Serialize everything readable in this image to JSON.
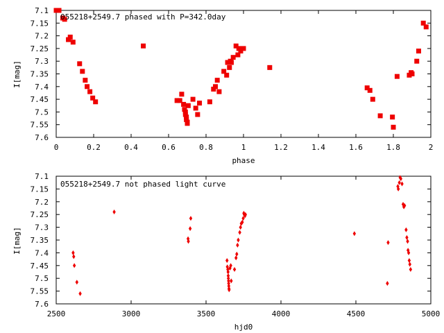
{
  "chart_data": [
    {
      "type": "scatter",
      "title": "055218+2549.7 phased with P=342.0day",
      "xlabel": "phase",
      "ylabel": "I[mag]",
      "xlim": [
        0,
        2
      ],
      "ylim": [
        7.1,
        7.6
      ],
      "y_inverted": true,
      "grid": false,
      "xticks": [
        "0",
        "0.2",
        "0.4",
        "0.6",
        "0.8",
        "1",
        "1.2",
        "1.4",
        "1.6",
        "1.8",
        "2"
      ],
      "yticks": [
        "7.1",
        "7.15",
        "7.2",
        "7.25",
        "7.3",
        "7.35",
        "7.4",
        "7.45",
        "7.5",
        "7.55",
        "7.6"
      ],
      "marker": "square",
      "color": "#ee0000",
      "points": [
        [
          0.0,
          7.1
        ],
        [
          0.01,
          7.1
        ],
        [
          0.015,
          7.1
        ],
        [
          0.035,
          7.13
        ],
        [
          0.045,
          7.135
        ],
        [
          0.065,
          7.215
        ],
        [
          0.075,
          7.205
        ],
        [
          0.09,
          7.225
        ],
        [
          0.125,
          7.31
        ],
        [
          0.14,
          7.34
        ],
        [
          0.155,
          7.375
        ],
        [
          0.165,
          7.4
        ],
        [
          0.18,
          7.42
        ],
        [
          0.195,
          7.445
        ],
        [
          0.21,
          7.46
        ],
        [
          0.465,
          7.24
        ],
        [
          0.645,
          7.455
        ],
        [
          0.66,
          7.455
        ],
        [
          0.67,
          7.43
        ],
        [
          0.68,
          7.47
        ],
        [
          0.685,
          7.49
        ],
        [
          0.69,
          7.5
        ],
        [
          0.69,
          7.51
        ],
        [
          0.695,
          7.52
        ],
        [
          0.695,
          7.53
        ],
        [
          0.7,
          7.54
        ],
        [
          0.7,
          7.545
        ],
        [
          0.705,
          7.475
        ],
        [
          0.73,
          7.45
        ],
        [
          0.745,
          7.485
        ],
        [
          0.755,
          7.51
        ],
        [
          0.765,
          7.465
        ],
        [
          0.82,
          7.46
        ],
        [
          0.84,
          7.41
        ],
        [
          0.85,
          7.4
        ],
        [
          0.86,
          7.375
        ],
        [
          0.87,
          7.42
        ],
        [
          0.895,
          7.34
        ],
        [
          0.91,
          7.355
        ],
        [
          0.915,
          7.305
        ],
        [
          0.925,
          7.325
        ],
        [
          0.93,
          7.3
        ],
        [
          0.935,
          7.305
        ],
        [
          0.945,
          7.285
        ],
        [
          0.96,
          7.24
        ],
        [
          0.97,
          7.275
        ],
        [
          0.975,
          7.25
        ],
        [
          0.985,
          7.26
        ],
        [
          1.0,
          7.25
        ],
        [
          1.14,
          7.325
        ],
        [
          1.66,
          7.405
        ],
        [
          1.675,
          7.415
        ],
        [
          1.69,
          7.45
        ],
        [
          1.73,
          7.515
        ],
        [
          1.795,
          7.52
        ],
        [
          1.8,
          7.56
        ],
        [
          1.82,
          7.36
        ],
        [
          1.885,
          7.355
        ],
        [
          1.895,
          7.345
        ],
        [
          1.9,
          7.35
        ],
        [
          1.925,
          7.3
        ],
        [
          1.935,
          7.26
        ],
        [
          1.96,
          7.15
        ],
        [
          1.975,
          7.165
        ]
      ]
    },
    {
      "type": "scatter",
      "title": "055218+2549.7 not phased light curve",
      "xlabel": "hjd0",
      "ylabel": "I[mag]",
      "xlim": [
        2500,
        5000
      ],
      "ylim": [
        7.1,
        7.6
      ],
      "y_inverted": true,
      "grid": false,
      "xticks": [
        "2500",
        "3000",
        "3500",
        "4000",
        "4500",
        "5000"
      ],
      "yticks": [
        "7.1",
        "7.15",
        "7.2",
        "7.25",
        "7.3",
        "7.35",
        "7.4",
        "7.45",
        "7.5",
        "7.55",
        "7.6"
      ],
      "marker": "diamond",
      "color": "#ee0000",
      "points": [
        [
          2613,
          7.4
        ],
        [
          2617,
          7.415
        ],
        [
          2621,
          7.45
        ],
        [
          2638,
          7.515
        ],
        [
          2660,
          7.56
        ],
        [
          2887,
          7.24
        ],
        [
          3380,
          7.345
        ],
        [
          3382,
          7.355
        ],
        [
          3394,
          7.305
        ],
        [
          3398,
          7.265
        ],
        [
          3640,
          7.43
        ],
        [
          3642,
          7.455
        ],
        [
          3645,
          7.465
        ],
        [
          3647,
          7.475
        ],
        [
          3648,
          7.49
        ],
        [
          3649,
          7.5
        ],
        [
          3650,
          7.51
        ],
        [
          3651,
          7.52
        ],
        [
          3652,
          7.53
        ],
        [
          3653,
          7.54
        ],
        [
          3654,
          7.545
        ],
        [
          3660,
          7.46
        ],
        [
          3665,
          7.45
        ],
        [
          3668,
          7.51
        ],
        [
          3690,
          7.465
        ],
        [
          3700,
          7.42
        ],
        [
          3705,
          7.405
        ],
        [
          3710,
          7.37
        ],
        [
          3715,
          7.35
        ],
        [
          3725,
          7.32
        ],
        [
          3730,
          7.3
        ],
        [
          3735,
          7.285
        ],
        [
          3742,
          7.28
        ],
        [
          3748,
          7.265
        ],
        [
          3752,
          7.245
        ],
        [
          3755,
          7.25
        ],
        [
          3760,
          7.255
        ],
        [
          3763,
          7.25
        ],
        [
          4490,
          7.325
        ],
        [
          4710,
          7.52
        ],
        [
          4715,
          7.36
        ],
        [
          4780,
          7.14
        ],
        [
          4783,
          7.15
        ],
        [
          4790,
          7.125
        ],
        [
          4795,
          7.105
        ],
        [
          4800,
          7.11
        ],
        [
          4808,
          7.13
        ],
        [
          4815,
          7.21
        ],
        [
          4820,
          7.22
        ],
        [
          4825,
          7.215
        ],
        [
          4835,
          7.31
        ],
        [
          4840,
          7.34
        ],
        [
          4845,
          7.355
        ],
        [
          4848,
          7.39
        ],
        [
          4852,
          7.4
        ],
        [
          4856,
          7.43
        ],
        [
          4860,
          7.445
        ],
        [
          4865,
          7.465
        ]
      ]
    }
  ]
}
